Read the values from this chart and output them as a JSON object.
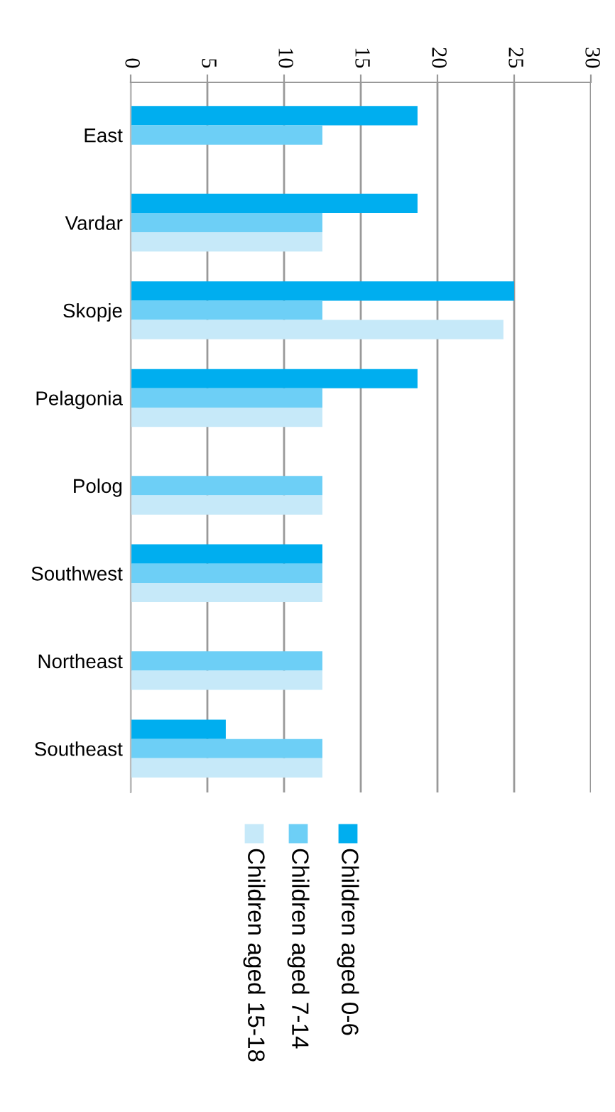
{
  "chart_data": {
    "type": "bar",
    "orientation": "horizontal",
    "categories": [
      "East",
      "Vardar",
      "Skopje",
      "Pelagonia",
      "Polog",
      "Southwest",
      "Northeast",
      "Southeast"
    ],
    "series": [
      {
        "name": "Children aged 0-6",
        "color": "#00aeef",
        "values": [
          18.7,
          18.7,
          25.0,
          18.7,
          null,
          12.5,
          null,
          6.2
        ]
      },
      {
        "name": "Children aged 7-14",
        "color": "#6dcff6",
        "values": [
          12.5,
          12.5,
          12.5,
          12.5,
          12.5,
          12.5,
          12.5,
          12.5
        ]
      },
      {
        "name": "Children aged 15-18",
        "color": "#c6e9f9",
        "values": [
          null,
          12.5,
          24.3,
          12.5,
          12.5,
          12.5,
          12.5,
          12.5
        ]
      }
    ],
    "xlim": [
      0,
      30
    ],
    "xticks": [
      0,
      5,
      10,
      15,
      20,
      25,
      30
    ],
    "grid": "x",
    "legend": "bottom"
  }
}
